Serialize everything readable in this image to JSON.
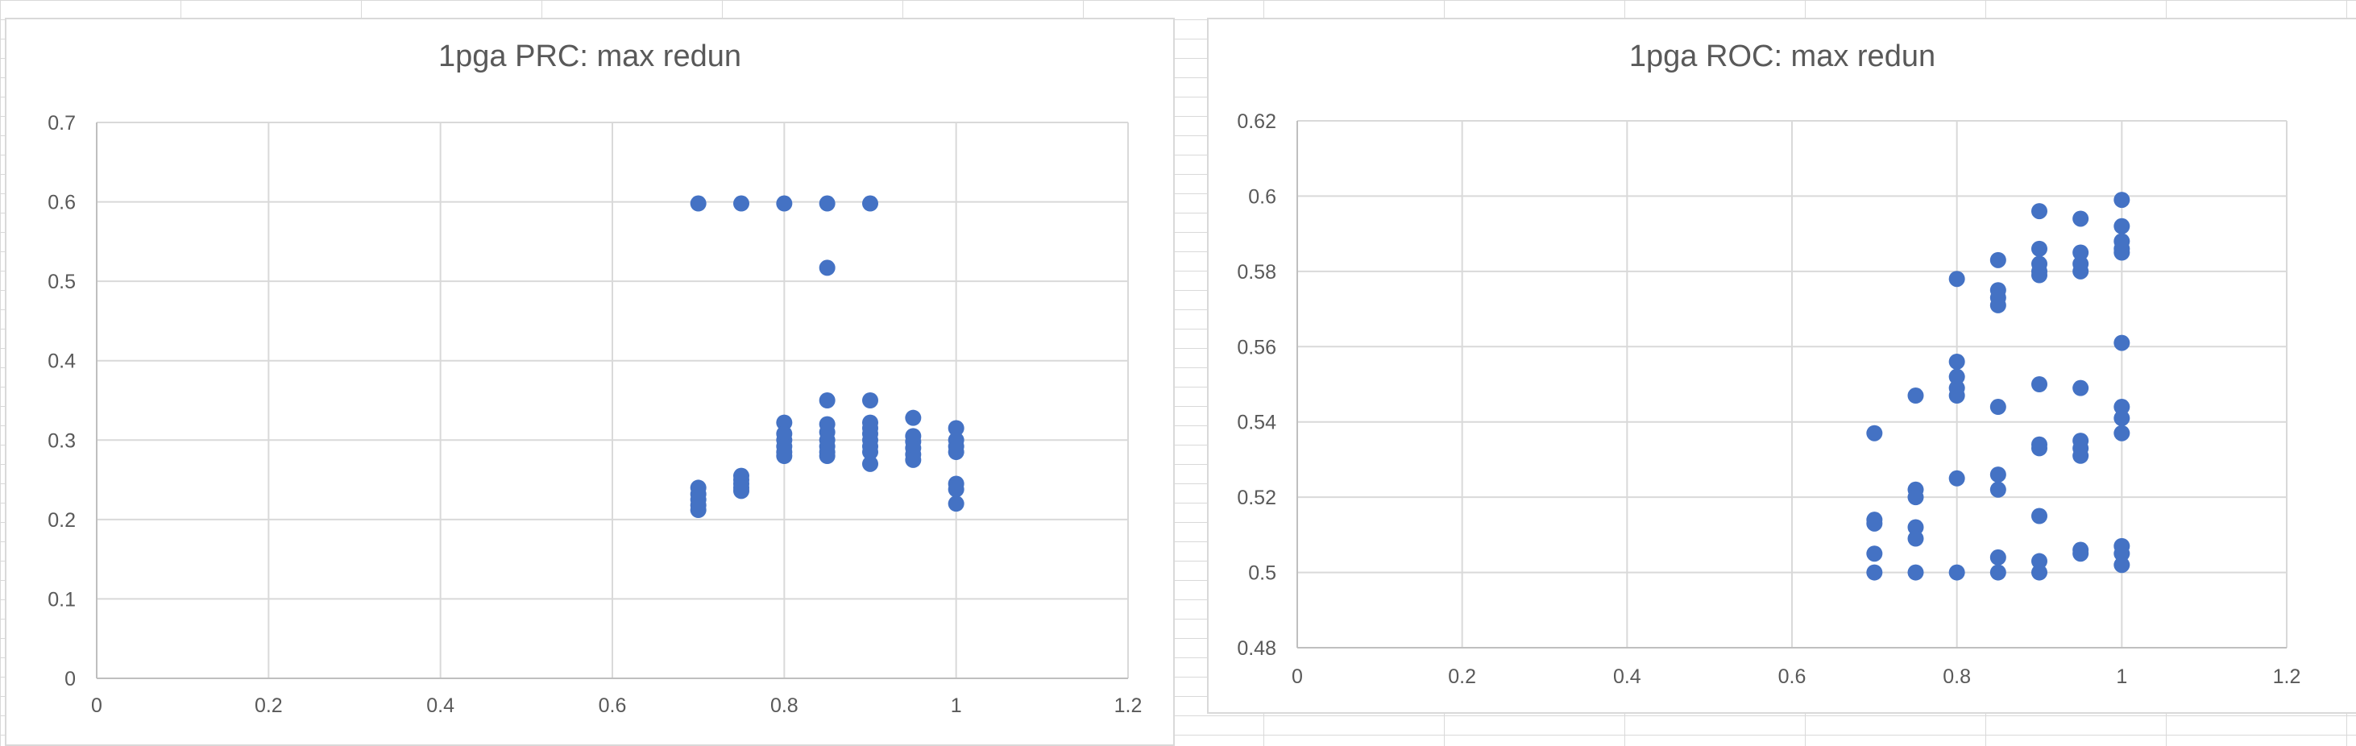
{
  "chart_data": [
    {
      "type": "scatter",
      "title": "1pga PRC: max redun",
      "xlabel": "",
      "ylabel": "",
      "xlim": [
        0,
        1.2
      ],
      "ylim": [
        0,
        0.7
      ],
      "x_ticks": [
        "0",
        "0.2",
        "0.4",
        "0.6",
        "0.8",
        "1",
        "1.2"
      ],
      "y_ticks": [
        "0",
        "0.1",
        "0.2",
        "0.3",
        "0.4",
        "0.5",
        "0.6",
        "0.7"
      ],
      "grid": true,
      "legend": "none",
      "marker_color": "#4472c4",
      "series": [
        {
          "points": [
            [
              0.7,
              0.598
            ],
            [
              0.75,
              0.598
            ],
            [
              0.8,
              0.598
            ],
            [
              0.85,
              0.598
            ],
            [
              0.9,
              0.598
            ],
            [
              0.85,
              0.517
            ],
            [
              0.7,
              0.24
            ],
            [
              0.7,
              0.232
            ],
            [
              0.7,
              0.225
            ],
            [
              0.7,
              0.218
            ],
            [
              0.7,
              0.212
            ],
            [
              0.75,
              0.255
            ],
            [
              0.75,
              0.25
            ],
            [
              0.75,
              0.245
            ],
            [
              0.75,
              0.24
            ],
            [
              0.75,
              0.236
            ],
            [
              0.8,
              0.322
            ],
            [
              0.8,
              0.308
            ],
            [
              0.8,
              0.3
            ],
            [
              0.8,
              0.292
            ],
            [
              0.8,
              0.285
            ],
            [
              0.8,
              0.28
            ],
            [
              0.85,
              0.35
            ],
            [
              0.85,
              0.32
            ],
            [
              0.85,
              0.31
            ],
            [
              0.85,
              0.3
            ],
            [
              0.85,
              0.292
            ],
            [
              0.85,
              0.285
            ],
            [
              0.85,
              0.28
            ],
            [
              0.9,
              0.35
            ],
            [
              0.9,
              0.322
            ],
            [
              0.9,
              0.315
            ],
            [
              0.9,
              0.308
            ],
            [
              0.9,
              0.3
            ],
            [
              0.9,
              0.292
            ],
            [
              0.9,
              0.285
            ],
            [
              0.9,
              0.27
            ],
            [
              0.95,
              0.328
            ],
            [
              0.95,
              0.305
            ],
            [
              0.95,
              0.298
            ],
            [
              0.95,
              0.29
            ],
            [
              0.95,
              0.282
            ],
            [
              0.95,
              0.275
            ],
            [
              1.0,
              0.315
            ],
            [
              1.0,
              0.3
            ],
            [
              1.0,
              0.292
            ],
            [
              1.0,
              0.285
            ],
            [
              1.0,
              0.245
            ],
            [
              1.0,
              0.238
            ],
            [
              1.0,
              0.22
            ]
          ]
        }
      ]
    },
    {
      "type": "scatter",
      "title": "1pga ROC: max redun",
      "xlabel": "",
      "ylabel": "",
      "xlim": [
        0,
        1.2
      ],
      "ylim": [
        0.48,
        0.62
      ],
      "x_ticks": [
        "0",
        "0.2",
        "0.4",
        "0.6",
        "0.8",
        "1",
        "1.2"
      ],
      "y_ticks": [
        "0.48",
        "0.5",
        "0.52",
        "0.54",
        "0.56",
        "0.58",
        "0.6",
        "0.62"
      ],
      "grid": true,
      "legend": "none",
      "marker_color": "#4472c4",
      "series": [
        {
          "points": [
            [
              0.7,
              0.537
            ],
            [
              0.7,
              0.514
            ],
            [
              0.7,
              0.513
            ],
            [
              0.7,
              0.505
            ],
            [
              0.7,
              0.5
            ],
            [
              0.75,
              0.547
            ],
            [
              0.75,
              0.522
            ],
            [
              0.75,
              0.52
            ],
            [
              0.75,
              0.512
            ],
            [
              0.75,
              0.509
            ],
            [
              0.75,
              0.5
            ],
            [
              0.8,
              0.578
            ],
            [
              0.8,
              0.556
            ],
            [
              0.8,
              0.552
            ],
            [
              0.8,
              0.549
            ],
            [
              0.8,
              0.547
            ],
            [
              0.8,
              0.525
            ],
            [
              0.8,
              0.5
            ],
            [
              0.85,
              0.583
            ],
            [
              0.85,
              0.575
            ],
            [
              0.85,
              0.573
            ],
            [
              0.85,
              0.571
            ],
            [
              0.85,
              0.544
            ],
            [
              0.85,
              0.526
            ],
            [
              0.85,
              0.522
            ],
            [
              0.85,
              0.504
            ],
            [
              0.85,
              0.5
            ],
            [
              0.9,
              0.596
            ],
            [
              0.9,
              0.586
            ],
            [
              0.9,
              0.582
            ],
            [
              0.9,
              0.58
            ],
            [
              0.9,
              0.579
            ],
            [
              0.9,
              0.55
            ],
            [
              0.9,
              0.534
            ],
            [
              0.9,
              0.533
            ],
            [
              0.9,
              0.515
            ],
            [
              0.9,
              0.503
            ],
            [
              0.9,
              0.5
            ],
            [
              0.95,
              0.594
            ],
            [
              0.95,
              0.585
            ],
            [
              0.95,
              0.582
            ],
            [
              0.95,
              0.58
            ],
            [
              0.95,
              0.549
            ],
            [
              0.95,
              0.535
            ],
            [
              0.95,
              0.533
            ],
            [
              0.95,
              0.531
            ],
            [
              0.95,
              0.506
            ],
            [
              0.95,
              0.505
            ],
            [
              1.0,
              0.599
            ],
            [
              1.0,
              0.592
            ],
            [
              1.0,
              0.588
            ],
            [
              1.0,
              0.586
            ],
            [
              1.0,
              0.585
            ],
            [
              1.0,
              0.561
            ],
            [
              1.0,
              0.544
            ],
            [
              1.0,
              0.541
            ],
            [
              1.0,
              0.537
            ],
            [
              1.0,
              0.507
            ],
            [
              1.0,
              0.505
            ],
            [
              1.0,
              0.502
            ]
          ]
        }
      ]
    }
  ]
}
